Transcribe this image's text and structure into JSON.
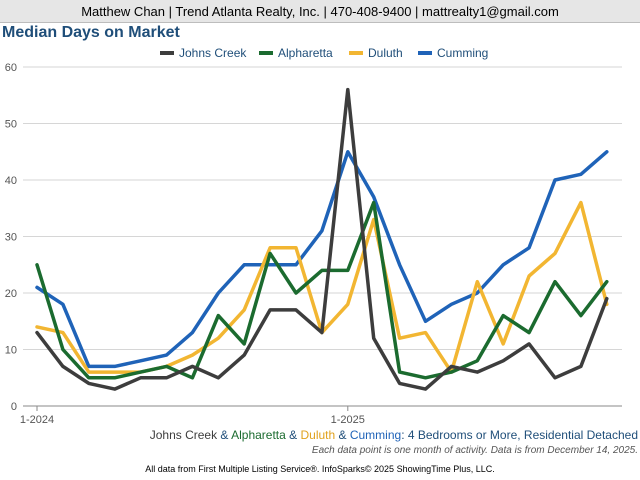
{
  "header": {
    "agent_line": "Matthew Chan | Trend Atlanta Realty, Inc. | 470-408-9400 | mattrealty1@gmail.com"
  },
  "subtitle": {
    "johns_creek": "Johns Creek",
    "amp1": " & ",
    "alpharetta": "Alpharetta",
    "amp2": " & ",
    "duluth": "Duluth",
    "amp3": " & ",
    "cumming": "Cumming",
    "rest": ": 4 Bedrooms or More, Residential Detached"
  },
  "footnote": "Each data point is one month of activity. Data is from December 14, 2025.",
  "source": "All data from First Multiple Listing Service®. InfoSparks© 2025 ShowingTime Plus, LLC.",
  "chart_data": {
    "type": "line",
    "title": "Median Days on Market",
    "xlabel": "",
    "ylabel": "",
    "ylim": [
      0,
      60
    ],
    "yticks": [
      0,
      10,
      20,
      30,
      40,
      50,
      60
    ],
    "grid": true,
    "legend_position": "top-center",
    "x_count": 24,
    "x_tick_labels": [
      {
        "index": 0,
        "label": "1-2024"
      },
      {
        "index": 12,
        "label": "1-2025"
      }
    ],
    "series": [
      {
        "name": "Johns Creek",
        "color": "#3d3d3d",
        "values": [
          13,
          7,
          4,
          3,
          5,
          5,
          7,
          5,
          9,
          17,
          17,
          13,
          56,
          12,
          4,
          3,
          7,
          6,
          8,
          11,
          5,
          7,
          19
        ]
      },
      {
        "name": "Alpharetta",
        "color": "#1b6b2f",
        "values": [
          25,
          10,
          5,
          5,
          6,
          7,
          5,
          16,
          11,
          27,
          20,
          24,
          24,
          36,
          6,
          5,
          6,
          8,
          16,
          13,
          22,
          16,
          22
        ]
      },
      {
        "name": "Duluth",
        "color": "#f2b632",
        "values": [
          14,
          13,
          6,
          6,
          6,
          7,
          9,
          12,
          17,
          28,
          28,
          13,
          18,
          33,
          12,
          13,
          6,
          22,
          11,
          23,
          27,
          36,
          18
        ]
      },
      {
        "name": "Cumming",
        "color": "#1f63b8",
        "values": [
          21,
          18,
          7,
          7,
          8,
          9,
          13,
          20,
          25,
          25,
          25,
          31,
          45,
          37,
          25,
          15,
          18,
          20,
          25,
          28,
          40,
          41,
          45
        ]
      }
    ]
  }
}
